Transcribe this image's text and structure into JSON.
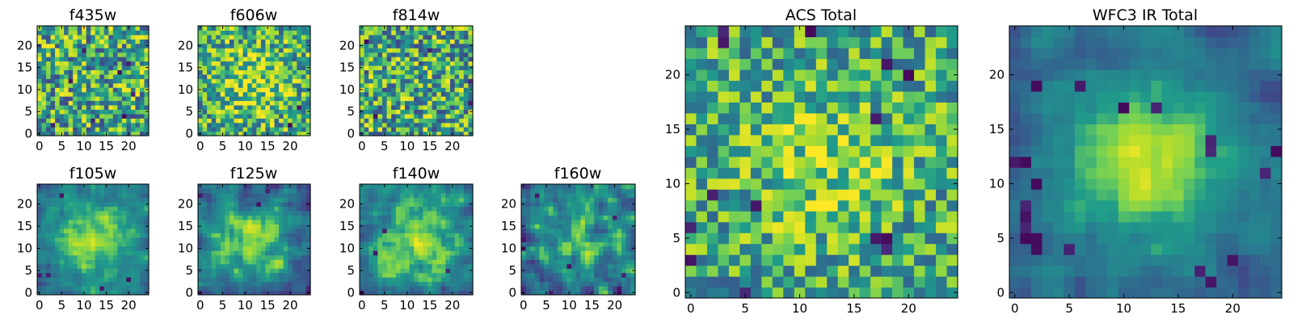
{
  "chart_data": [
    {
      "type": "heatmap",
      "title": "f435w",
      "grid_size": 25,
      "xticks": [
        0,
        5,
        10,
        15,
        20
      ],
      "yticks": [
        0,
        5,
        10,
        15,
        20
      ],
      "xlim": [
        -0.5,
        24.5
      ],
      "ylim": [
        -0.5,
        24.5
      ],
      "colormap": "viridis",
      "pattern": "noise",
      "seed": 11,
      "noise": 0.34,
      "peak": 0.0,
      "sigma": 6,
      "dark_px": [
        [
          3,
          2
        ],
        [
          7,
          12
        ],
        [
          12,
          3
        ],
        [
          19,
          4
        ],
        [
          18,
          14
        ],
        [
          21,
          9
        ],
        [
          20,
          16
        ],
        [
          10,
          19
        ]
      ]
    },
    {
      "type": "heatmap",
      "title": "f606w",
      "grid_size": 25,
      "xticks": [
        0,
        5,
        10,
        15,
        20
      ],
      "yticks": [
        0,
        5,
        10,
        15,
        20
      ],
      "xlim": [
        -0.5,
        24.5
      ],
      "ylim": [
        -0.5,
        24.5
      ],
      "colormap": "viridis",
      "pattern": "noise+center",
      "seed": 23,
      "noise": 0.3,
      "peak": 0.25,
      "sigma": 6,
      "dark_px": [
        [
          20,
          2
        ],
        [
          22,
          6
        ]
      ]
    },
    {
      "type": "heatmap",
      "title": "f814w",
      "grid_size": 25,
      "xticks": [
        0,
        5,
        10,
        15,
        20
      ],
      "yticks": [
        0,
        5,
        10,
        15,
        20
      ],
      "xlim": [
        -0.5,
        24.5
      ],
      "ylim": [
        -0.5,
        24.5
      ],
      "colormap": "viridis",
      "pattern": "noise",
      "seed": 37,
      "noise": 0.34,
      "peak": 0.0,
      "sigma": 6,
      "dark_px": [
        [
          24,
          12
        ],
        [
          24,
          7
        ],
        [
          1,
          21
        ],
        [
          3,
          4
        ],
        [
          15,
          19
        ]
      ]
    },
    {
      "type": "heatmap",
      "title": "f105w",
      "grid_size": 25,
      "xticks": [
        0,
        5,
        10,
        15,
        20
      ],
      "yticks": [
        0,
        5,
        10,
        15,
        20
      ],
      "xlim": [
        -0.5,
        24.5
      ],
      "ylim": [
        -0.5,
        24.5
      ],
      "colormap": "viridis",
      "pattern": "smooth+center",
      "seed": 41,
      "noise": 0.18,
      "peak": 0.45,
      "sigma": 7,
      "dark_px": [
        [
          2,
          4
        ],
        [
          0,
          4
        ],
        [
          5,
          22
        ],
        [
          20,
          3
        ],
        [
          14,
          1
        ]
      ]
    },
    {
      "type": "heatmap",
      "title": "f125w",
      "grid_size": 25,
      "xticks": [
        0,
        5,
        10,
        15,
        20
      ],
      "yticks": [
        0,
        5,
        10,
        15,
        20
      ],
      "xlim": [
        -0.5,
        24.5
      ],
      "ylim": [
        -0.5,
        24.5
      ],
      "colormap": "viridis",
      "pattern": "smooth+center",
      "seed": 53,
      "noise": 0.22,
      "peak": 0.4,
      "sigma": 6,
      "dark_px": [
        [
          0,
          22
        ],
        [
          15,
          23
        ],
        [
          0,
          0
        ],
        [
          24,
          1
        ],
        [
          13,
          20
        ]
      ]
    },
    {
      "type": "heatmap",
      "title": "f140w",
      "grid_size": 25,
      "xticks": [
        0,
        5,
        10,
        15,
        20
      ],
      "yticks": [
        0,
        5,
        10,
        15,
        20
      ],
      "xlim": [
        -0.5,
        24.5
      ],
      "ylim": [
        -0.5,
        24.5
      ],
      "colormap": "viridis",
      "pattern": "smooth+center",
      "seed": 67,
      "noise": 0.22,
      "peak": 0.4,
      "sigma": 8,
      "dark_px": [
        [
          0,
          0
        ],
        [
          5,
          14
        ],
        [
          19,
          5
        ],
        [
          3,
          9
        ]
      ]
    },
    {
      "type": "heatmap",
      "title": "f160w",
      "grid_size": 25,
      "xticks": [
        0,
        5,
        10,
        15,
        20
      ],
      "yticks": [
        0,
        5,
        10,
        15,
        20
      ],
      "xlim": [
        -0.5,
        24.5
      ],
      "ylim": [
        -0.5,
        24.5
      ],
      "colormap": "viridis",
      "pattern": "smooth+center",
      "seed": 79,
      "noise": 0.3,
      "peak": 0.3,
      "sigma": 6,
      "dark_px": [
        [
          0,
          12
        ],
        [
          0,
          10
        ],
        [
          3,
          22
        ],
        [
          22,
          4
        ],
        [
          20,
          17
        ],
        [
          10,
          6
        ],
        [
          6,
          0
        ]
      ]
    },
    {
      "type": "heatmap",
      "title": "ACS Total",
      "grid_size": 25,
      "xticks": [
        0,
        5,
        10,
        15,
        20
      ],
      "yticks": [
        0,
        5,
        10,
        15,
        20
      ],
      "xlim": [
        -0.5,
        24.5
      ],
      "ylim": [
        -0.5,
        24.5
      ],
      "colormap": "viridis",
      "pattern": "noise+center",
      "seed": 97,
      "noise": 0.26,
      "peak": 0.2,
      "sigma": 5,
      "dark_px": [
        [
          11,
          24
        ],
        [
          3,
          24
        ],
        [
          3,
          23
        ],
        [
          18,
          5
        ],
        [
          18,
          4
        ],
        [
          17,
          5
        ],
        [
          6,
          8
        ],
        [
          0,
          6
        ],
        [
          17,
          16
        ],
        [
          18,
          21
        ],
        [
          20,
          20
        ],
        [
          5,
          0
        ],
        [
          0,
          3
        ],
        [
          2,
          9
        ]
      ]
    },
    {
      "type": "heatmap",
      "title": "WFC3 IR Total",
      "grid_size": 25,
      "xticks": [
        0,
        5,
        10,
        15,
        20
      ],
      "yticks": [
        0,
        5,
        10,
        15,
        20
      ],
      "xlim": [
        -0.5,
        24.5
      ],
      "ylim": [
        -0.5,
        24.5
      ],
      "colormap": "viridis",
      "pattern": "smooth+center",
      "seed": 113,
      "noise": 0.14,
      "peak": 0.5,
      "sigma": 5.5,
      "dark_px": [
        [
          0,
          12
        ],
        [
          1,
          12
        ],
        [
          1,
          7
        ],
        [
          1,
          6
        ],
        [
          1,
          5
        ],
        [
          2,
          5
        ],
        [
          2,
          4
        ],
        [
          1,
          8
        ],
        [
          2,
          19
        ],
        [
          2,
          10
        ],
        [
          17,
          2
        ],
        [
          18,
          1
        ],
        [
          20,
          3
        ],
        [
          18,
          13
        ],
        [
          18,
          14
        ],
        [
          13,
          17
        ],
        [
          10,
          17
        ],
        [
          6,
          19
        ],
        [
          5,
          4
        ],
        [
          23,
          11
        ],
        [
          24,
          13
        ]
      ]
    }
  ],
  "colors": {
    "viridis": [
      "#440154",
      "#482777",
      "#3f4a8a",
      "#31678e",
      "#26838f",
      "#1f9d8a",
      "#6cce5a",
      "#b6de2b",
      "#fee825"
    ]
  }
}
